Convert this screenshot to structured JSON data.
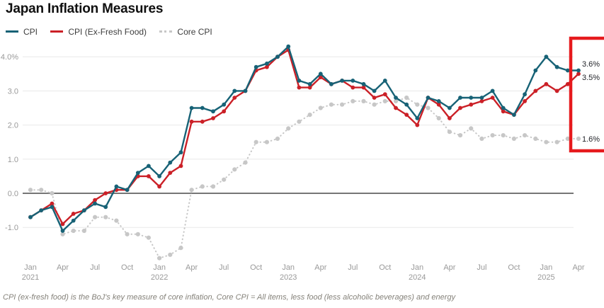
{
  "title": "Japan Inflation Measures",
  "footnote": "CPI (ex-fresh food) is the BoJ's key measure of core inflation, Core CPI = All items, less food (less alcoholic beverages) and energy",
  "colors": {
    "cpi": "#176276",
    "cpi_ex_fresh": "#cb2027",
    "core_cpi": "#c7c7c7",
    "highlight_box": "#e61a1d",
    "zero_line": "#767676",
    "gridline": "#e8e8e8",
    "axis_text": "#999999",
    "value_label_text": "#23252a"
  },
  "annotations": {
    "highlight_box": {
      "color": "#e61a1d",
      "covers": "Apr 2025 latest values"
    },
    "value_labels": [
      {
        "series": "CPI",
        "text": "3.6%"
      },
      {
        "series": "CPI (Ex-Fresh Food)",
        "text": "3.5%"
      },
      {
        "series": "Core CPI",
        "text": "1.6%"
      }
    ]
  },
  "chart_data": {
    "type": "line",
    "x_range": [
      "Jan 2021",
      "Apr 2025"
    ],
    "ylim": [
      -2.1,
      4.6
    ],
    "grid": "horizontal-only",
    "legend_position": "top-left",
    "yticks": [
      {
        "v": 4.0,
        "label": "4.0%"
      },
      {
        "v": 3.0,
        "label": "3.0"
      },
      {
        "v": 2.0,
        "label": "2.0"
      },
      {
        "v": 1.0,
        "label": "1.0"
      },
      {
        "v": 0.0,
        "label": "0.0"
      },
      {
        "v": -1.0,
        "label": "-1.0"
      }
    ],
    "xticks": [
      {
        "i": 0,
        "m": "Jan",
        "y": "2021"
      },
      {
        "i": 3,
        "m": "Apr"
      },
      {
        "i": 6,
        "m": "Jul"
      },
      {
        "i": 9,
        "m": "Oct"
      },
      {
        "i": 12,
        "m": "Jan",
        "y": "2022"
      },
      {
        "i": 15,
        "m": "Apr"
      },
      {
        "i": 18,
        "m": "Jul"
      },
      {
        "i": 21,
        "m": "Oct"
      },
      {
        "i": 24,
        "m": "Jan",
        "y": "2023"
      },
      {
        "i": 27,
        "m": "Apr"
      },
      {
        "i": 30,
        "m": "Jul"
      },
      {
        "i": 33,
        "m": "Oct"
      },
      {
        "i": 36,
        "m": "Jan",
        "y": "2024"
      },
      {
        "i": 39,
        "m": "Apr"
      },
      {
        "i": 42,
        "m": "Jul"
      },
      {
        "i": 45,
        "m": "Oct"
      },
      {
        "i": 48,
        "m": "Jan",
        "y": "2025"
      },
      {
        "i": 51,
        "m": "Apr"
      }
    ],
    "months": [
      "Jan 2021",
      "Feb 2021",
      "Mar 2021",
      "Apr 2021",
      "May 2021",
      "Jun 2021",
      "Jul 2021",
      "Aug 2021",
      "Sep 2021",
      "Oct 2021",
      "Nov 2021",
      "Dec 2021",
      "Jan 2022",
      "Feb 2022",
      "Mar 2022",
      "Apr 2022",
      "May 2022",
      "Jun 2022",
      "Jul 2022",
      "Aug 2022",
      "Sep 2022",
      "Oct 2022",
      "Nov 2022",
      "Dec 2022",
      "Jan 2023",
      "Feb 2023",
      "Mar 2023",
      "Apr 2023",
      "May 2023",
      "Jun 2023",
      "Jul 2023",
      "Aug 2023",
      "Sep 2023",
      "Oct 2023",
      "Nov 2023",
      "Dec 2023",
      "Jan 2024",
      "Feb 2024",
      "Mar 2024",
      "Apr 2024",
      "May 2024",
      "Jun 2024",
      "Jul 2024",
      "Aug 2024",
      "Sep 2024",
      "Oct 2024",
      "Nov 2024",
      "Dec 2024",
      "Jan 2025",
      "Feb 2025",
      "Mar 2025",
      "Apr 2025"
    ],
    "series": [
      {
        "name": "CPI",
        "color": "#176276",
        "line_style": "solid",
        "values": [
          -0.7,
          -0.5,
          -0.4,
          -1.1,
          -0.8,
          -0.5,
          -0.3,
          -0.4,
          0.2,
          0.1,
          0.6,
          0.8,
          0.5,
          0.9,
          1.2,
          2.5,
          2.5,
          2.4,
          2.6,
          3.0,
          3.0,
          3.7,
          3.8,
          4.0,
          4.3,
          3.3,
          3.2,
          3.5,
          3.2,
          3.3,
          3.3,
          3.2,
          3.0,
          3.3,
          2.8,
          2.6,
          2.2,
          2.8,
          2.7,
          2.5,
          2.8,
          2.8,
          2.8,
          3.0,
          2.5,
          2.3,
          2.9,
          3.6,
          4.0,
          3.7,
          3.6,
          3.6
        ]
      },
      {
        "name": "CPI (Ex-Fresh Food)",
        "color": "#cb2027",
        "line_style": "solid",
        "values": [
          -0.7,
          -0.5,
          -0.3,
          -0.9,
          -0.6,
          -0.5,
          -0.2,
          0.0,
          0.1,
          0.1,
          0.5,
          0.5,
          0.2,
          0.6,
          0.8,
          2.1,
          2.1,
          2.2,
          2.4,
          2.8,
          3.0,
          3.6,
          3.7,
          4.0,
          4.2,
          3.1,
          3.1,
          3.4,
          3.2,
          3.3,
          3.1,
          3.1,
          2.8,
          2.9,
          2.5,
          2.3,
          2.0,
          2.8,
          2.6,
          2.2,
          2.5,
          2.6,
          2.7,
          2.8,
          2.4,
          2.3,
          2.7,
          3.0,
          3.2,
          3.0,
          3.2,
          3.5
        ]
      },
      {
        "name": "Core CPI",
        "color": "#c7c7c7",
        "line_style": "dotted",
        "values": [
          0.1,
          0.1,
          0.0,
          -1.2,
          -1.1,
          -1.1,
          -0.7,
          -0.7,
          -0.8,
          -1.2,
          -1.2,
          -1.3,
          -1.9,
          -1.8,
          -1.6,
          0.1,
          0.2,
          0.2,
          0.4,
          0.7,
          0.9,
          1.5,
          1.5,
          1.6,
          1.9,
          2.1,
          2.3,
          2.5,
          2.6,
          2.6,
          2.7,
          2.7,
          2.6,
          2.7,
          2.7,
          2.8,
          2.6,
          2.5,
          2.2,
          1.8,
          1.7,
          1.9,
          1.6,
          1.7,
          1.7,
          1.6,
          1.7,
          1.6,
          1.5,
          1.5,
          1.6,
          1.6
        ]
      }
    ]
  }
}
